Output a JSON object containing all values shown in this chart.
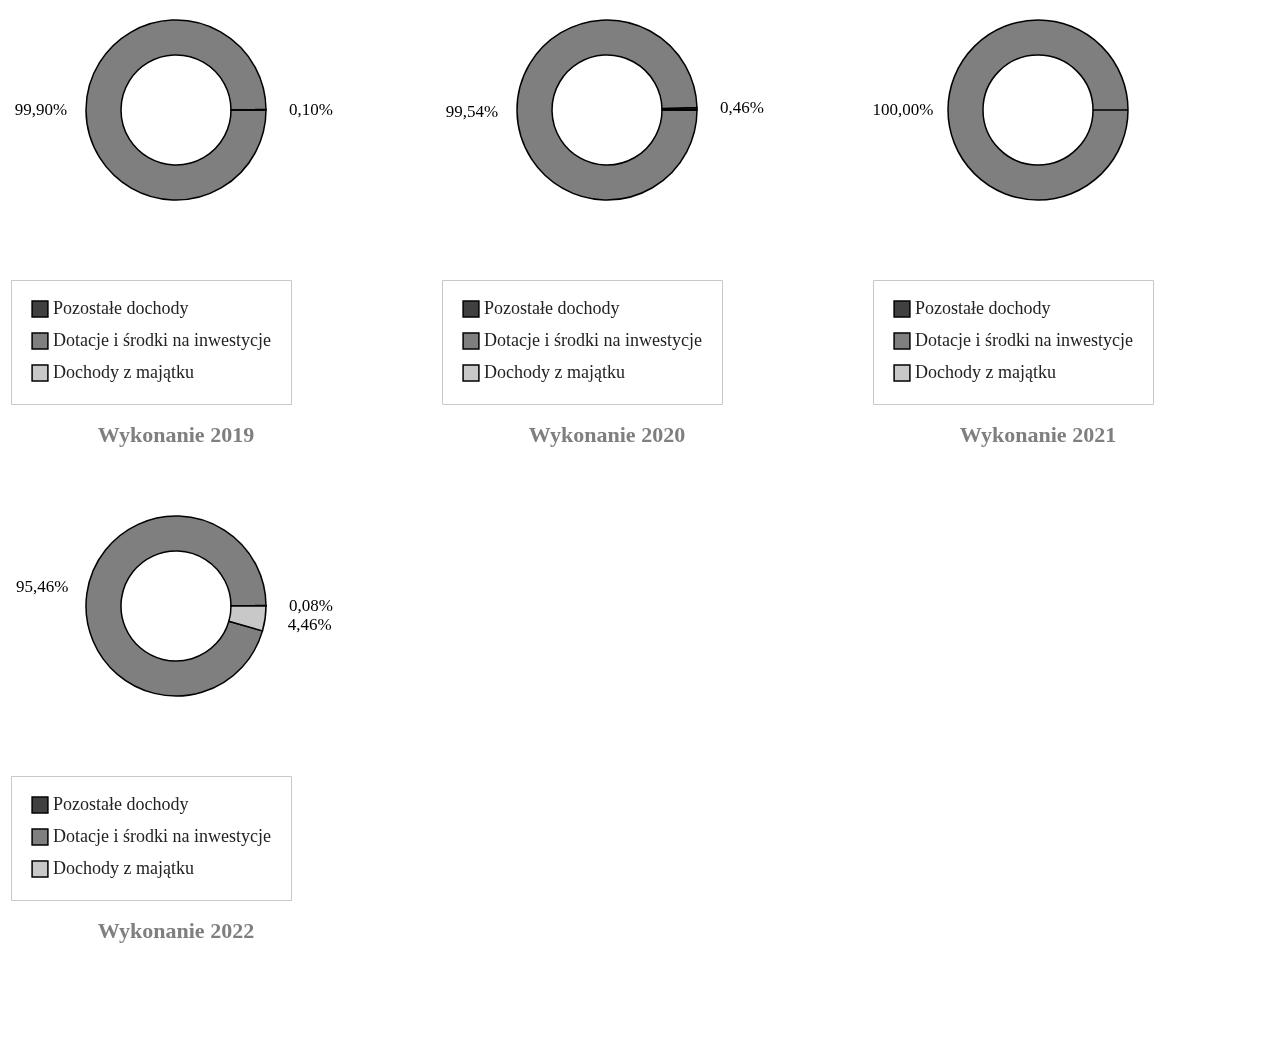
{
  "chart_data": [
    {
      "type": "donut",
      "title": "Wykonanie 2019",
      "categories": [
        "Pozostałe dochody",
        "Dotacje i środki na inwestycje",
        "Dochody z majątku"
      ],
      "values": [
        0.1,
        99.9,
        0
      ],
      "colors": [
        "#404040",
        "#7f7f7f",
        "#c8c8c8"
      ],
      "value_labels": [
        "0,10%",
        "99,90%",
        null
      ],
      "legend": "bottom"
    },
    {
      "type": "donut",
      "title": "Wykonanie 2020",
      "categories": [
        "Pozostałe dochody",
        "Dotacje i środki na inwestycje",
        "Dochody z majątku"
      ],
      "values": [
        0.46,
        99.54,
        0
      ],
      "colors": [
        "#404040",
        "#7f7f7f",
        "#c8c8c8"
      ],
      "value_labels": [
        "0,46%",
        "99,54%",
        null
      ],
      "legend": "bottom"
    },
    {
      "type": "donut",
      "title": "Wykonanie 2021",
      "categories": [
        "Pozostałe dochody",
        "Dotacje i środki na inwestycje",
        "Dochody z majątku"
      ],
      "values": [
        0,
        100,
        0
      ],
      "colors": [
        "#404040",
        "#7f7f7f",
        "#c8c8c8"
      ],
      "value_labels": [
        null,
        "100,00%",
        null
      ],
      "legend": "bottom"
    },
    {
      "type": "donut",
      "title": "Wykonanie 2022",
      "categories": [
        "Pozostałe dochody",
        "Dotacje i środki na inwestycje",
        "Dochody z majątku"
      ],
      "values": [
        0.08,
        95.46,
        4.46
      ],
      "colors": [
        "#404040",
        "#7f7f7f",
        "#c8c8c8"
      ],
      "value_labels": [
        "0,08%",
        "95,46%",
        "4,46%"
      ],
      "legend": "bottom"
    }
  ]
}
